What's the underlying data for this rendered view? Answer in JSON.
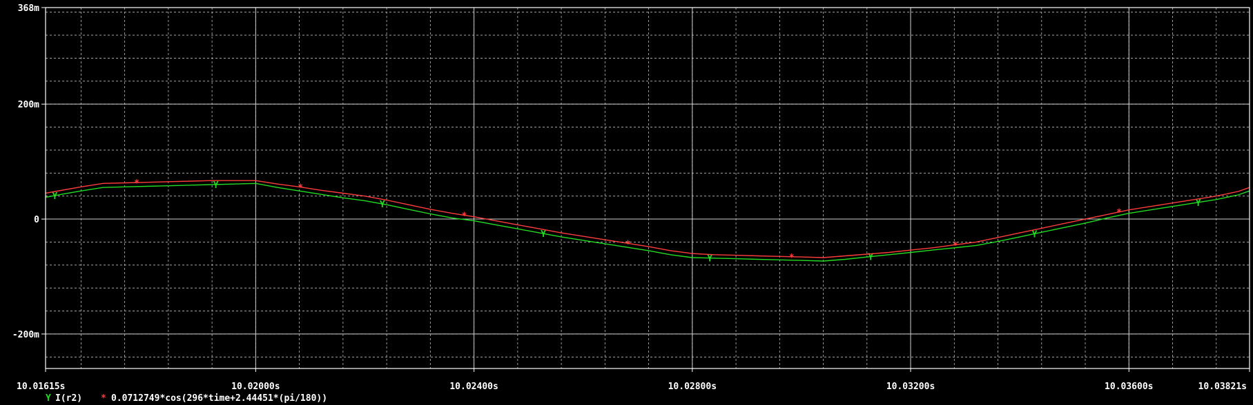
{
  "chart_data": {
    "type": "line",
    "title": "",
    "xlabel": "",
    "ylabel": "",
    "xlim": [
      10.01615,
      10.03821
    ],
    "ylim": [
      -0.26,
      0.368
    ],
    "grid": true,
    "legend_placement": "bottom-left",
    "x_ticks": [
      {
        "value": 10.01615,
        "label": "10.01615s"
      },
      {
        "value": 10.02,
        "label": "10.02000s"
      },
      {
        "value": 10.024,
        "label": "10.02400s"
      },
      {
        "value": 10.028,
        "label": "10.02800s"
      },
      {
        "value": 10.032,
        "label": "10.03200s"
      },
      {
        "value": 10.036,
        "label": "10.03600s"
      },
      {
        "value": 10.03821,
        "label": "10.03821s"
      }
    ],
    "y_ticks": [
      {
        "value": 0.368,
        "label": "368m"
      },
      {
        "value": 0.2,
        "label": "200m"
      },
      {
        "value": 0,
        "label": "0"
      },
      {
        "value": -0.2,
        "label": "-200m"
      }
    ],
    "series": [
      {
        "name": "I(r2)",
        "marker_symbol": "Y",
        "color": "#22dd22",
        "x": [
          10.01615,
          10.0165,
          10.0168,
          10.0172,
          10.0176,
          10.018,
          10.0184,
          10.0188,
          10.0192,
          10.0196,
          10.02,
          10.0204,
          10.0208,
          10.0212,
          10.0216,
          10.022,
          10.0224,
          10.0228,
          10.0232,
          10.0236,
          10.024,
          10.0244,
          10.0248,
          10.0252,
          10.0256,
          10.026,
          10.0264,
          10.0268,
          10.0272,
          10.0276,
          10.028,
          10.0284,
          10.0288,
          10.0292,
          10.0296,
          10.03,
          10.0304,
          10.0308,
          10.0312,
          10.0316,
          10.032,
          10.0324,
          10.0328,
          10.0332,
          10.0336,
          10.034,
          10.0344,
          10.0348,
          10.0352,
          10.0356,
          10.036,
          10.0364,
          10.0368,
          10.0372,
          10.0376,
          10.038,
          10.03821
        ],
        "y": [
          0.038,
          0.044,
          0.049,
          0.055,
          0.056,
          0.057,
          0.058,
          0.059,
          0.06,
          0.061,
          0.062,
          0.055,
          0.049,
          0.043,
          0.037,
          0.032,
          0.025,
          0.017,
          0.009,
          0.002,
          -0.003,
          -0.01,
          -0.017,
          -0.024,
          -0.031,
          -0.037,
          -0.043,
          -0.049,
          -0.055,
          -0.062,
          -0.067,
          -0.068,
          -0.069,
          -0.07,
          -0.071,
          -0.072,
          -0.073,
          -0.07,
          -0.066,
          -0.062,
          -0.058,
          -0.054,
          -0.05,
          -0.046,
          -0.039,
          -0.031,
          -0.023,
          -0.015,
          -0.007,
          0.002,
          0.01,
          0.016,
          0.022,
          0.028,
          0.034,
          0.042,
          0.049
        ],
        "marker_x": [
          10.01632,
          10.01927,
          10.02232,
          10.02527,
          10.02832,
          10.03127,
          10.03427,
          10.03727
        ]
      },
      {
        "name": "0.0712749*cos(296*time+2.44451*(pi/180))",
        "marker_symbol": "*",
        "color": "#ff3c3c",
        "x": [
          10.01615,
          10.0165,
          10.0168,
          10.0172,
          10.0176,
          10.018,
          10.0184,
          10.0188,
          10.0192,
          10.0196,
          10.02,
          10.0204,
          10.0208,
          10.0212,
          10.0216,
          10.022,
          10.0224,
          10.0228,
          10.0232,
          10.0236,
          10.024,
          10.0244,
          10.0248,
          10.0252,
          10.0256,
          10.026,
          10.0264,
          10.0268,
          10.0272,
          10.0276,
          10.028,
          10.0284,
          10.0288,
          10.0292,
          10.0296,
          10.03,
          10.0304,
          10.0308,
          10.0312,
          10.0316,
          10.032,
          10.0324,
          10.0328,
          10.0332,
          10.0336,
          10.034,
          10.0344,
          10.0348,
          10.0352,
          10.0356,
          10.036,
          10.0364,
          10.0368,
          10.0372,
          10.0376,
          10.038,
          10.03821
        ],
        "y": [
          0.045,
          0.051,
          0.056,
          0.062,
          0.063,
          0.064,
          0.065,
          0.066,
          0.067,
          0.067,
          0.067,
          0.061,
          0.056,
          0.05,
          0.045,
          0.04,
          0.033,
          0.025,
          0.017,
          0.01,
          0.004,
          -0.003,
          -0.01,
          -0.017,
          -0.024,
          -0.03,
          -0.036,
          -0.042,
          -0.048,
          -0.055,
          -0.06,
          -0.062,
          -0.063,
          -0.064,
          -0.065,
          -0.066,
          -0.067,
          -0.064,
          -0.061,
          -0.058,
          -0.054,
          -0.05,
          -0.045,
          -0.04,
          -0.032,
          -0.024,
          -0.016,
          -0.008,
          0.0,
          0.008,
          0.016,
          0.022,
          0.028,
          0.034,
          0.04,
          0.048,
          0.055
        ],
        "marker_x": [
          10.01782,
          10.02082,
          10.02382,
          10.02682,
          10.02982,
          10.03282,
          10.03582
        ]
      }
    ]
  }
}
